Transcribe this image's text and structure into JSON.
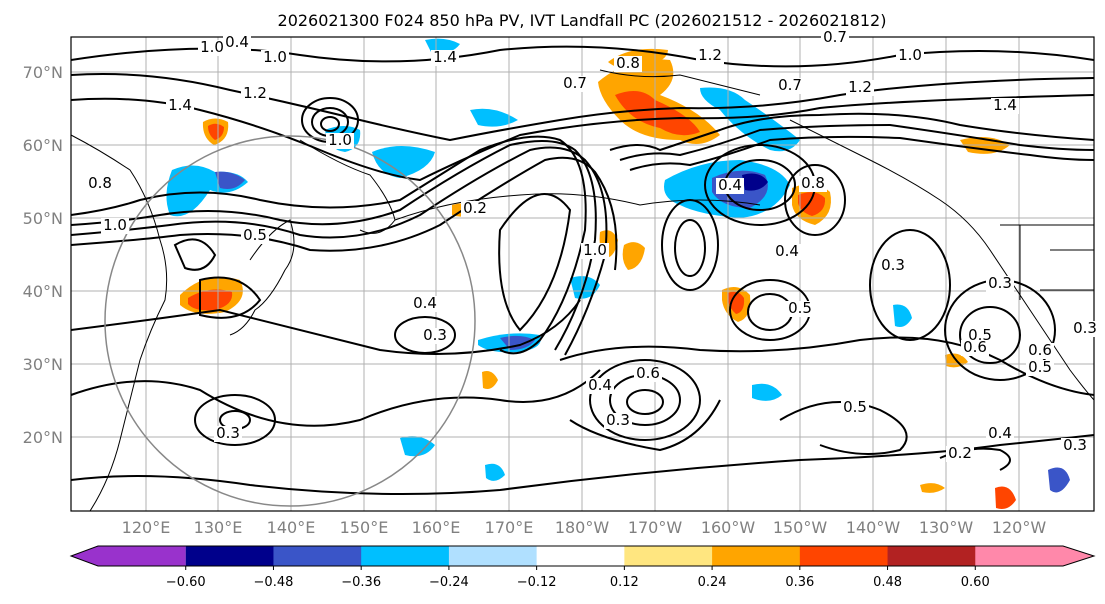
{
  "title": "2026021300 F024 850 hPa PV, IVT Landfall PC (2026021512 - 2026021812)",
  "lat_labels": [
    "70°N",
    "60°N",
    "50°N",
    "40°N",
    "30°N",
    "20°N"
  ],
  "lon_labels": [
    "120°E",
    "130°E",
    "140°E",
    "150°E",
    "160°E",
    "170°E",
    "180°W",
    "170°W",
    "160°W",
    "150°W",
    "140°W",
    "130°W",
    "120°W"
  ],
  "colorbar": {
    "ticks": [
      "−0.60",
      "−0.48",
      "−0.36",
      "−0.24",
      "−0.12",
      "0.12",
      "0.24",
      "0.36",
      "0.48",
      "0.60"
    ],
    "colors": [
      "#9932cc",
      "#00008b",
      "#3a55c8",
      "#00bfff",
      "#b0e0ff",
      "#ffffff",
      "#ffe680",
      "#ffa500",
      "#ff4500",
      "#b22222",
      "#ff88aa"
    ]
  },
  "contour_labels": [
    "0.4",
    "1.0",
    "1.0",
    "1.4",
    "1.2",
    "1.4",
    "0.8",
    "0.7",
    "0.7",
    "1.2",
    "1.0",
    "1.2",
    "1.4",
    "0.8",
    "1.0",
    "1.0",
    "0.5",
    "0.2",
    "0.5",
    "0.4",
    "0.4",
    "0.8",
    "1.0",
    "0.4",
    "0.3",
    "0.3",
    "0.3",
    "0.5",
    "0.6",
    "0.4",
    "0.5",
    "0.3",
    "0.6",
    "0.3",
    "0.2",
    "0.4",
    "0.3",
    "0.3",
    "0.5",
    "0.6",
    "0.7"
  ]
}
